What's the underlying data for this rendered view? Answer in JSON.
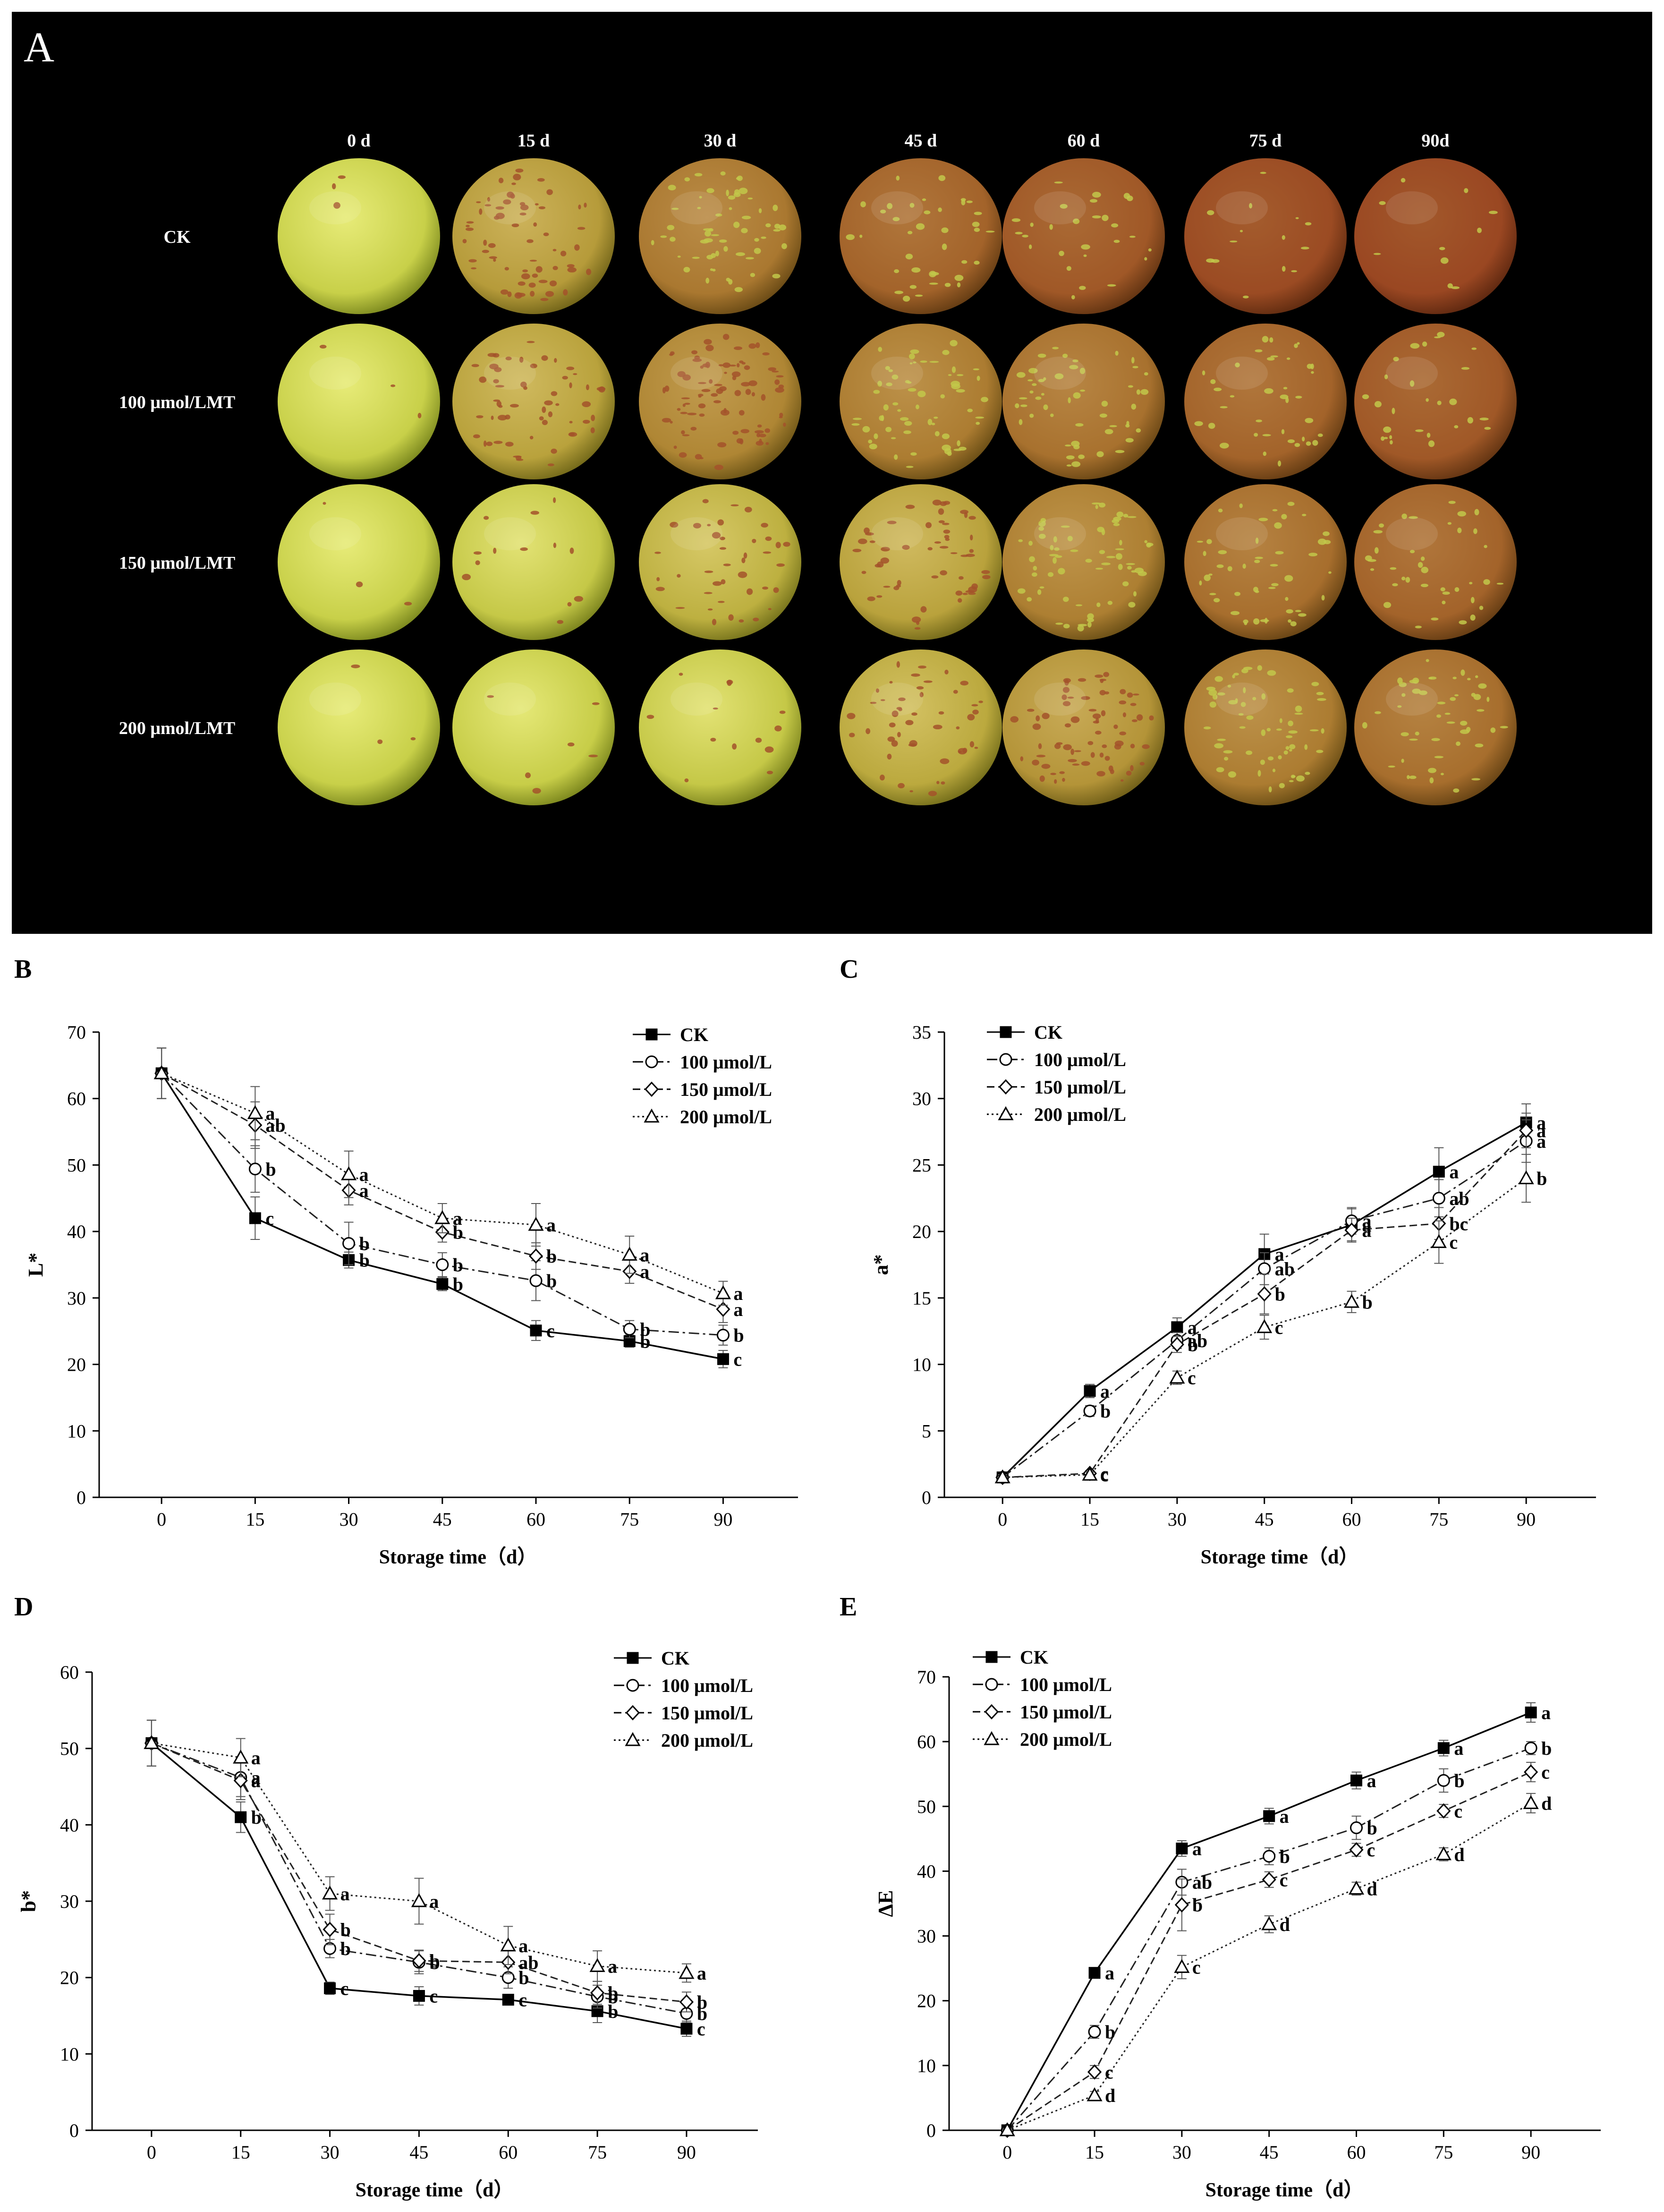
{
  "photo_panel": {
    "label": "A",
    "days": [
      "0 d",
      "15 d",
      "30 d",
      "45 d",
      "60 d",
      "75 d",
      "90d"
    ],
    "treatments": [
      "CK",
      "100 μmol/LMT",
      "150 μmol/LMT",
      "200 μmol/LMT"
    ],
    "brown_coverage_fraction": [
      [
        0.02,
        0.4,
        0.65,
        0.8,
        0.88,
        0.97,
        1.0
      ],
      [
        0.02,
        0.35,
        0.55,
        0.62,
        0.7,
        0.8,
        0.88
      ],
      [
        0.02,
        0.08,
        0.25,
        0.35,
        0.6,
        0.72,
        0.8
      ],
      [
        0.02,
        0.04,
        0.08,
        0.3,
        0.45,
        0.62,
        0.72
      ]
    ],
    "colors": {
      "background": "#000000",
      "fruit_green": "#c9d34a",
      "fruit_brown": "#9a4722",
      "label": "#ffffff"
    }
  },
  "chart_data": [
    {
      "panel": "B",
      "type": "line",
      "title": "",
      "xlabel": "Storage time（d）",
      "ylabel": "L*",
      "x": [
        0,
        15,
        30,
        45,
        60,
        75,
        90
      ],
      "xlim": [
        -10,
        102
      ],
      "ylim": [
        0,
        70
      ],
      "yticks": [
        0,
        10,
        20,
        30,
        40,
        50,
        60,
        70
      ],
      "legend_position": "top-right",
      "series": [
        {
          "name": "CK",
          "marker": "square",
          "dash": "none",
          "values": [
            63.8,
            42.0,
            35.7,
            32.1,
            25.1,
            23.5,
            20.8
          ],
          "errors": [
            3.8,
            3.2,
            1.2,
            1.0,
            1.5,
            0.9,
            1.3
          ],
          "letters": [
            "",
            "c",
            "b",
            "b",
            "c",
            "b",
            "c"
          ]
        },
        {
          "name": "100 μmol/L",
          "marker": "circle",
          "dash": "dashdot",
          "values": [
            63.8,
            49.4,
            38.2,
            35.0,
            32.6,
            25.3,
            24.4
          ],
          "errors": [
            3.8,
            3.5,
            3.2,
            1.8,
            3.0,
            1.3,
            1.5
          ],
          "letters": [
            "",
            "b",
            "b",
            "b",
            "b",
            "b",
            "b"
          ]
        },
        {
          "name": "150 μmol/L",
          "marker": "diamond",
          "dash": "dash",
          "values": [
            63.8,
            56.0,
            46.2,
            39.9,
            36.3,
            34.0,
            28.3
          ],
          "errors": [
            3.8,
            3.5,
            2.2,
            1.5,
            2.0,
            1.8,
            2.0
          ],
          "letters": [
            "",
            "ab",
            "a",
            "b",
            "b",
            "a",
            "a"
          ]
        },
        {
          "name": "200 μmol/L",
          "marker": "triangle",
          "dash": "dot",
          "values": [
            63.8,
            57.8,
            48.6,
            42.0,
            41.0,
            36.5,
            30.7
          ],
          "errors": [
            3.8,
            4.0,
            3.5,
            2.2,
            3.2,
            2.8,
            1.8
          ],
          "letters": [
            "",
            "a",
            "a",
            "a",
            "a",
            "a",
            "a"
          ]
        }
      ]
    },
    {
      "panel": "C",
      "type": "line",
      "title": "",
      "xlabel": "Storage time（d）",
      "ylabel": "a*",
      "x": [
        0,
        15,
        30,
        45,
        60,
        75,
        90
      ],
      "xlim": [
        -10,
        102
      ],
      "ylim": [
        0,
        35
      ],
      "yticks": [
        0,
        5,
        10,
        15,
        20,
        25,
        30,
        35
      ],
      "legend_position": "top-left",
      "series": [
        {
          "name": "CK",
          "marker": "square",
          "dash": "none",
          "values": [
            1.5,
            8.0,
            12.8,
            18.3,
            20.5,
            24.5,
            28.2
          ],
          "errors": [
            0.2,
            0.5,
            0.7,
            1.5,
            1.2,
            1.8,
            1.4
          ],
          "letters": [
            "",
            "a",
            "a",
            "a",
            "a",
            "a",
            "a"
          ]
        },
        {
          "name": "100 μmol/L",
          "marker": "circle",
          "dash": "dashdot",
          "values": [
            1.5,
            6.5,
            11.8,
            17.2,
            20.8,
            22.5,
            26.8
          ],
          "errors": [
            0.2,
            0.4,
            0.6,
            1.2,
            1.0,
            1.4,
            1.6
          ],
          "letters": [
            "",
            "b",
            "ab",
            "ab",
            "a",
            "ab",
            "a"
          ]
        },
        {
          "name": "150 μmol/L",
          "marker": "diamond",
          "dash": "dash",
          "values": [
            1.5,
            1.8,
            11.5,
            15.3,
            20.1,
            20.6,
            27.6
          ],
          "errors": [
            0.2,
            0.2,
            0.6,
            1.5,
            0.9,
            1.2,
            1.3
          ],
          "letters": [
            "",
            "c",
            "b",
            "b",
            "a",
            "bc",
            "a"
          ]
        },
        {
          "name": "200 μmol/L",
          "marker": "triangle",
          "dash": "dot",
          "values": [
            1.5,
            1.7,
            9.0,
            12.8,
            14.7,
            19.2,
            24.0
          ],
          "errors": [
            0.2,
            0.2,
            0.5,
            0.9,
            0.8,
            1.6,
            1.8
          ],
          "letters": [
            "",
            "c",
            "c",
            "c",
            "b",
            "c",
            "b"
          ]
        }
      ]
    },
    {
      "panel": "D",
      "type": "line",
      "title": "",
      "xlabel": "Storage time（d）",
      "ylabel": "b*",
      "x": [
        0,
        15,
        30,
        45,
        60,
        75,
        90
      ],
      "xlim": [
        -10,
        102
      ],
      "ylim": [
        0,
        60
      ],
      "yticks": [
        0,
        10,
        20,
        30,
        40,
        50,
        60
      ],
      "legend_position": "top-right",
      "series": [
        {
          "name": "CK",
          "marker": "square",
          "dash": "none",
          "values": [
            50.7,
            41.0,
            18.6,
            17.6,
            17.1,
            15.6,
            13.3
          ],
          "errors": [
            3.0,
            2.0,
            0.8,
            1.2,
            0.6,
            1.5,
            1.0
          ],
          "letters": [
            "",
            "b",
            "c",
            "c",
            "c",
            "b",
            "c"
          ]
        },
        {
          "name": "100 μmol/L",
          "marker": "circle",
          "dash": "dashdot",
          "values": [
            50.7,
            46.2,
            23.8,
            22.0,
            20.0,
            17.5,
            15.3
          ],
          "errors": [
            3.0,
            2.5,
            1.2,
            1.5,
            1.4,
            1.5,
            1.2
          ],
          "letters": [
            "",
            "a",
            "b",
            "b",
            "b",
            "b",
            "b"
          ]
        },
        {
          "name": "150 μmol/L",
          "marker": "diamond",
          "dash": "dash",
          "values": [
            50.7,
            45.8,
            26.3,
            22.2,
            22.0,
            18.0,
            16.8
          ],
          "errors": [
            3.0,
            2.5,
            2.0,
            1.4,
            1.5,
            1.5,
            1.3
          ],
          "letters": [
            "",
            "a",
            "b",
            "b",
            "ab",
            "b",
            "b"
          ]
        },
        {
          "name": "200 μmol/L",
          "marker": "triangle",
          "dash": "dot",
          "values": [
            50.7,
            48.8,
            31.0,
            30.0,
            24.2,
            21.5,
            20.6
          ],
          "errors": [
            3.0,
            2.5,
            2.2,
            3.0,
            2.5,
            2.0,
            1.2
          ],
          "letters": [
            "",
            "a",
            "a",
            "a",
            "a",
            "a",
            "a"
          ]
        }
      ]
    },
    {
      "panel": "E",
      "type": "line",
      "title": "",
      "xlabel": "Storage time（d）",
      "ylabel": "ΔE",
      "x": [
        0,
        15,
        30,
        45,
        60,
        75,
        90
      ],
      "xlim": [
        -10,
        102
      ],
      "ylim": [
        0,
        70
      ],
      "yticks": [
        0,
        10,
        20,
        30,
        40,
        50,
        60,
        70
      ],
      "legend_position": "top-left",
      "series": [
        {
          "name": "CK",
          "marker": "square",
          "dash": "none",
          "values": [
            0.0,
            24.3,
            43.5,
            48.5,
            54.0,
            59.0,
            64.5
          ],
          "errors": [
            0.3,
            0.8,
            1.2,
            1.2,
            1.3,
            1.2,
            1.5
          ],
          "letters": [
            "",
            "a",
            "a",
            "a",
            "a",
            "a",
            "a"
          ]
        },
        {
          "name": "100 μmol/L",
          "marker": "circle",
          "dash": "dashdot",
          "values": [
            0.0,
            15.2,
            38.3,
            42.3,
            46.7,
            54.0,
            59.0
          ],
          "errors": [
            0.3,
            1.0,
            2.0,
            1.3,
            1.8,
            1.8,
            1.0
          ],
          "letters": [
            "",
            "b",
            "ab",
            "b",
            "b",
            "b",
            "b"
          ]
        },
        {
          "name": "150 μmol/L",
          "marker": "diamond",
          "dash": "dash",
          "values": [
            0.0,
            9.0,
            34.8,
            38.7,
            43.3,
            49.3,
            55.3
          ],
          "errors": [
            0.3,
            1.0,
            4.0,
            1.2,
            1.0,
            1.0,
            1.5
          ],
          "letters": [
            "",
            "c",
            "b",
            "c",
            "c",
            "c",
            "c"
          ]
        },
        {
          "name": "200 μmol/L",
          "marker": "triangle",
          "dash": "dot",
          "values": [
            0.0,
            5.4,
            25.2,
            31.8,
            37.3,
            42.6,
            50.5
          ],
          "errors": [
            0.3,
            0.6,
            1.8,
            1.3,
            1.0,
            1.0,
            1.5
          ],
          "letters": [
            "",
            "d",
            "c",
            "d",
            "d",
            "d",
            "d"
          ]
        }
      ]
    }
  ]
}
